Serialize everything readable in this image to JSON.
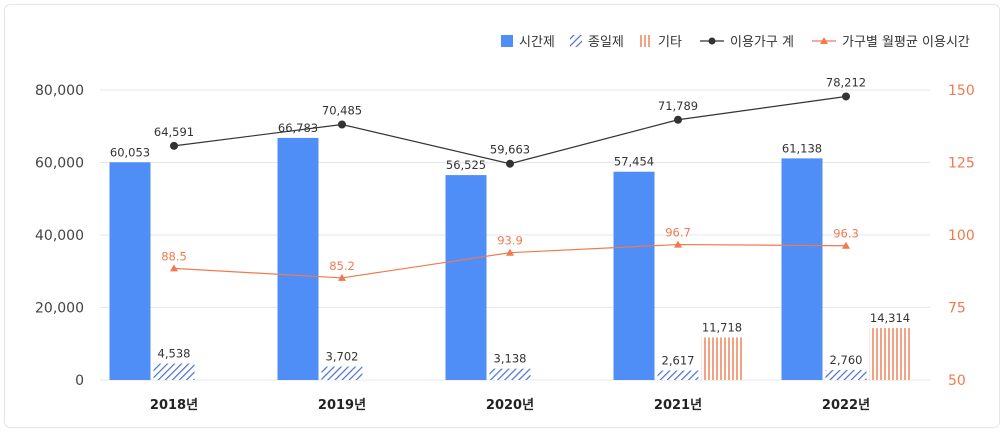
{
  "chart_data": {
    "type": "bar",
    "categories": [
      "2018년",
      "2019년",
      "2020년",
      "2021년",
      "2022년"
    ],
    "series": [
      {
        "name": "시간제",
        "type": "bar",
        "axis": "left",
        "values": [
          60053,
          66783,
          56525,
          57454,
          61138
        ],
        "labels": [
          "60,053",
          "66,783",
          "56,525",
          "57,454",
          "61,138"
        ],
        "color": "#4f8ef7"
      },
      {
        "name": "종일제",
        "type": "bar",
        "axis": "left",
        "values": [
          4538,
          3702,
          3138,
          2617,
          2760
        ],
        "labels": [
          "4,538",
          "3,702",
          "3,138",
          "2,617",
          "2,760"
        ],
        "color": "#4a6fd1"
      },
      {
        "name": "기타",
        "type": "bar",
        "axis": "left",
        "values": [
          null,
          null,
          null,
          11718,
          14314
        ],
        "labels": [
          "",
          "",
          "",
          "11,718",
          "14,314"
        ],
        "color": "#f07a4e"
      },
      {
        "name": "이용가구 계",
        "type": "line",
        "axis": "left",
        "values": [
          64591,
          70485,
          59663,
          71789,
          78212
        ],
        "labels": [
          "64,591",
          "70,485",
          "59,663",
          "71,789",
          "78,212"
        ],
        "color": "#333333"
      },
      {
        "name": "가구별 월평균 이용시간",
        "type": "line",
        "axis": "right",
        "values": [
          88.5,
          85.2,
          93.9,
          96.7,
          96.3
        ],
        "labels": [
          "88.5",
          "85.2",
          "93.9",
          "96.7",
          "96.3"
        ],
        "color": "#f07a4e"
      }
    ],
    "y_left": {
      "ylim": [
        0,
        80000
      ],
      "ticks": [
        0,
        20000,
        40000,
        60000,
        80000
      ],
      "tick_labels": [
        "0",
        "20,000",
        "40,000",
        "60,000",
        "80,000"
      ]
    },
    "y_right": {
      "ylim": [
        50,
        150
      ],
      "ticks": [
        50,
        75,
        100,
        125,
        150
      ],
      "tick_labels": [
        "50",
        "75",
        "100",
        "125",
        "150"
      ]
    },
    "grid": true,
    "legend": "top-right"
  }
}
